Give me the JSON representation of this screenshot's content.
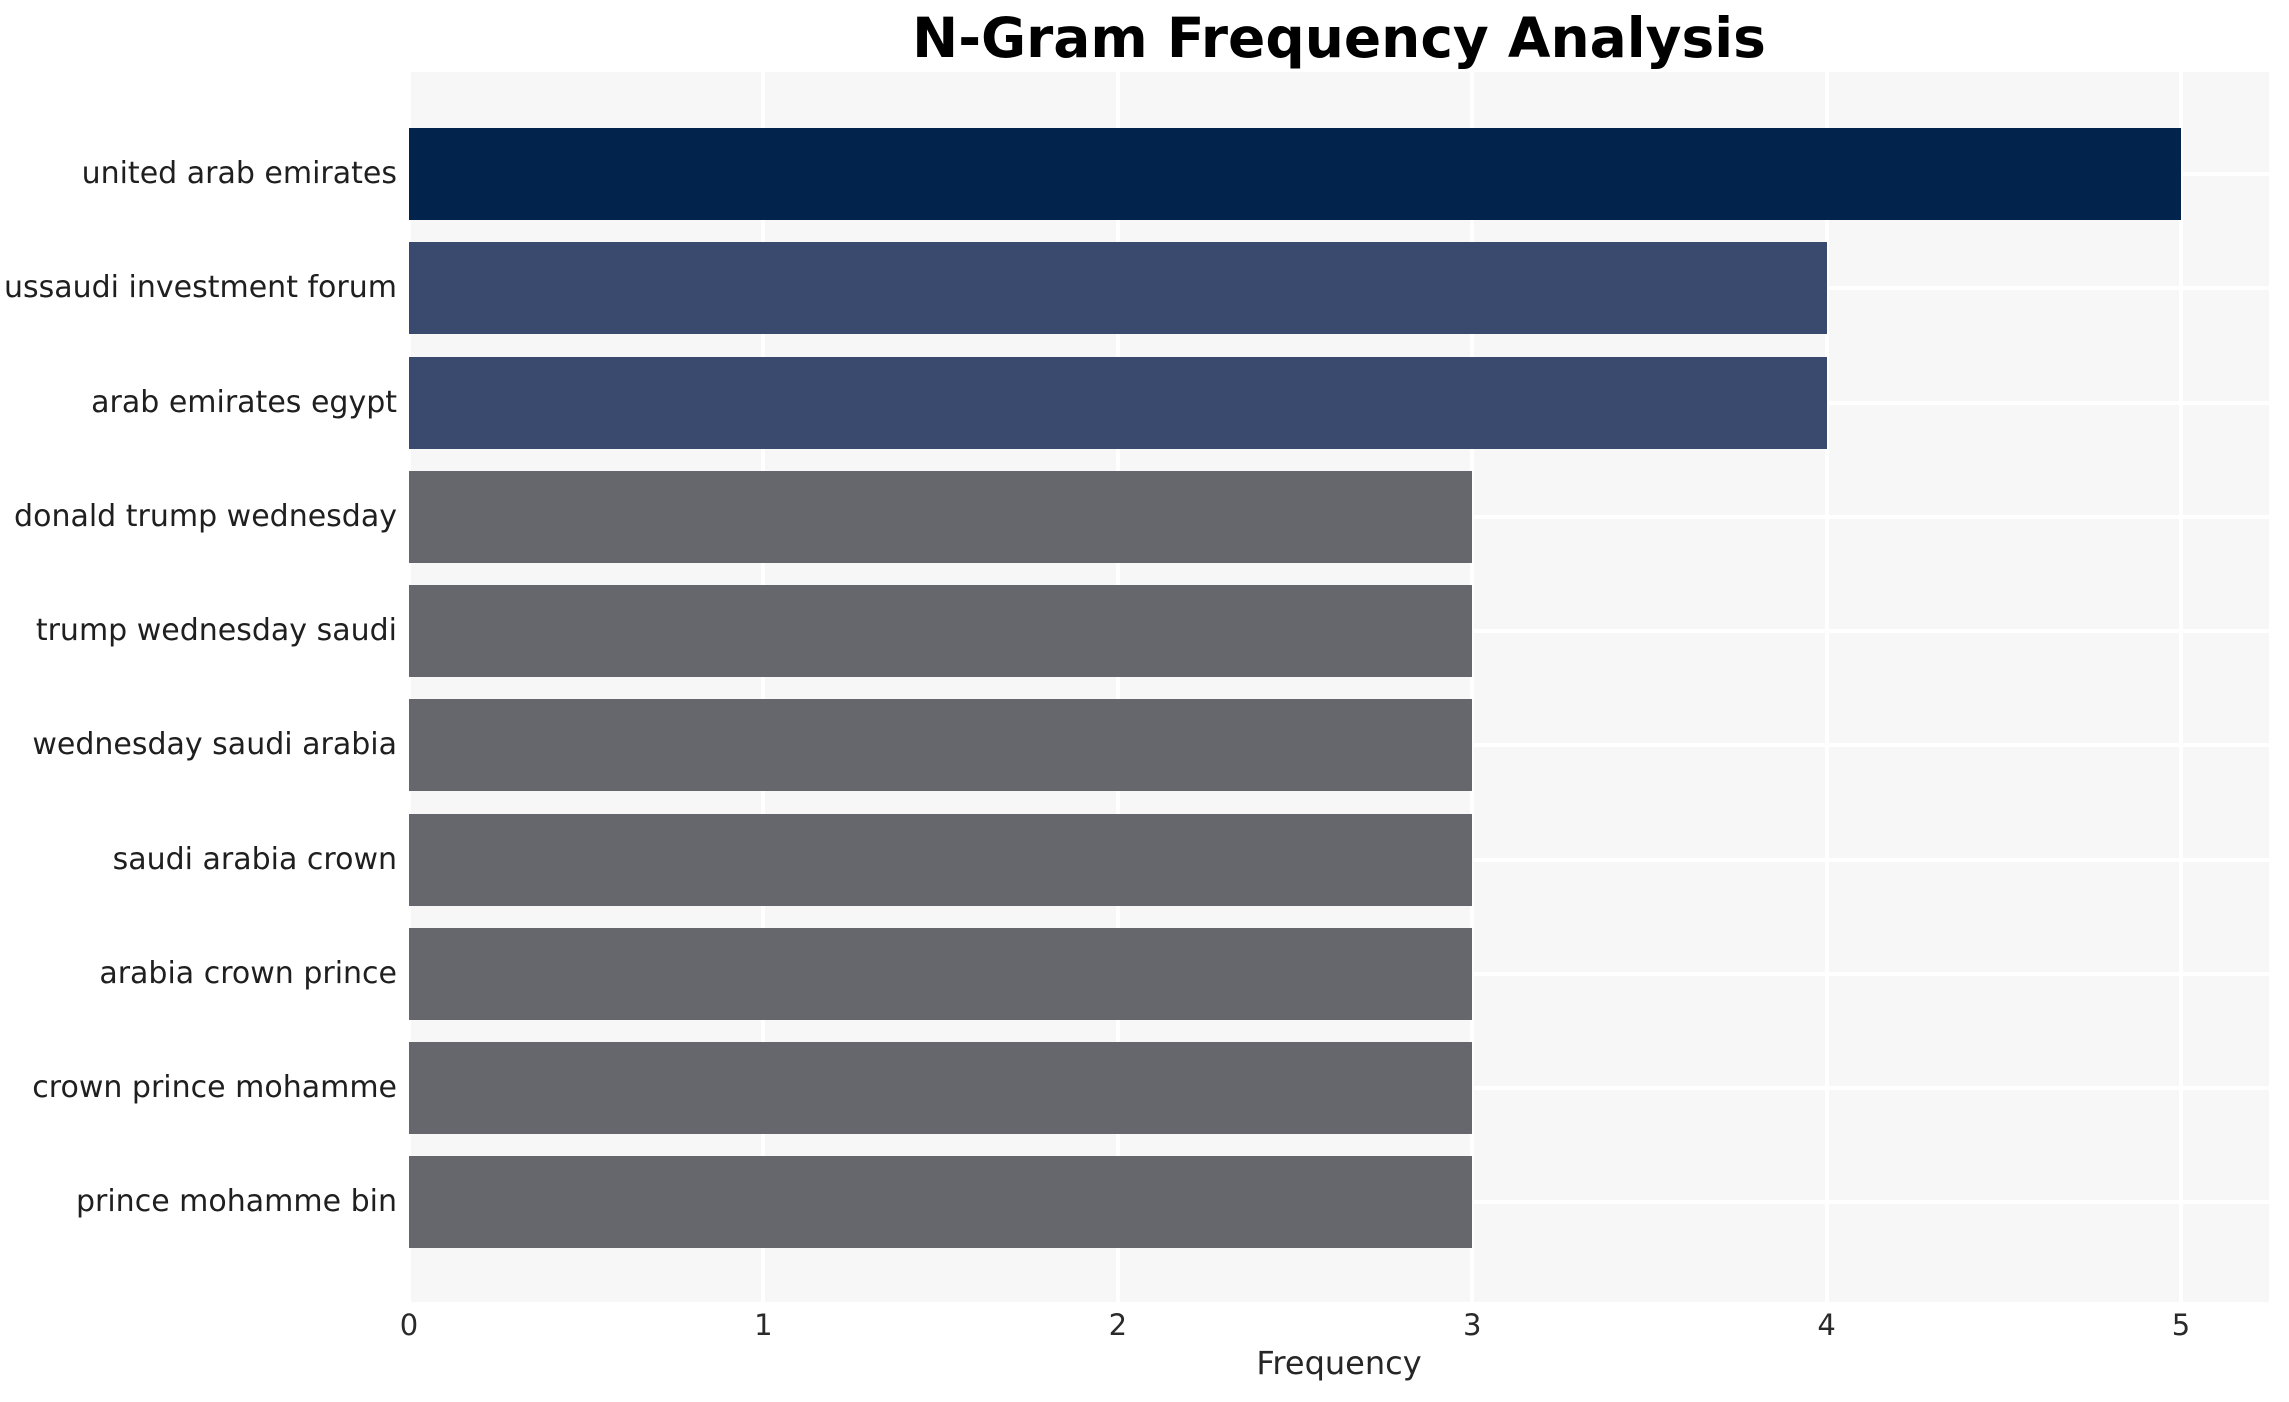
{
  "chart_data": {
    "type": "bar",
    "orientation": "horizontal",
    "title": "N-Gram Frequency Analysis",
    "xlabel": "Frequency",
    "ylabel": "",
    "categories": [
      "united arab emirates",
      "ussaudi investment forum",
      "arab emirates egypt",
      "donald trump wednesday",
      "trump wednesday saudi",
      "wednesday saudi arabia",
      "saudi arabia crown",
      "arabia crown prince",
      "crown prince mohamme",
      "prince mohamme bin"
    ],
    "values": [
      5,
      4,
      4,
      3,
      3,
      3,
      3,
      3,
      3,
      3
    ],
    "bar_colors": [
      "#02234b",
      "#394a6e",
      "#394a6e",
      "#65676d",
      "#65676d",
      "#65676d",
      "#65676d",
      "#65676d",
      "#65676d",
      "#65676d"
    ],
    "x_ticks": [
      0,
      1,
      2,
      3,
      4,
      5
    ],
    "xlim": [
      0,
      5.25
    ],
    "grid": true,
    "legend": false,
    "styles": {
      "figure_bg": "#ffffff",
      "plot_bg": "#f7f7f8",
      "grid_color": "#ffffff",
      "title_color": "#000000",
      "category_label_color": "#1f1f1f",
      "tick_label_color": "#2a2a2a",
      "axis_label_color": "#262626"
    }
  }
}
